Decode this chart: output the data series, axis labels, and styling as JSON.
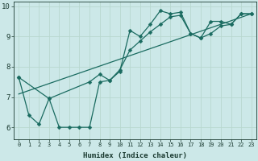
{
  "xlabel": "Humidex (Indice chaleur)",
  "bg_color": "#cce8e8",
  "line_color": "#1a6b60",
  "grid_color": "#b8d8d0",
  "font_color": "#1a3a30",
  "xlim_min": -0.5,
  "xlim_max": 23.5,
  "ylim_min": 5.6,
  "ylim_max": 10.15,
  "xticks": [
    0,
    1,
    2,
    3,
    4,
    5,
    6,
    7,
    8,
    9,
    10,
    11,
    12,
    13,
    14,
    15,
    16,
    17,
    18,
    19,
    20,
    21,
    22,
    23
  ],
  "yticks": [
    6,
    7,
    8,
    9,
    10
  ],
  "line1_x": [
    0,
    1,
    2,
    3,
    4,
    5,
    6,
    7,
    8,
    9,
    10,
    11,
    12,
    13,
    14,
    15,
    16,
    17,
    18,
    19,
    20,
    21,
    22,
    23
  ],
  "line1_y": [
    7.65,
    6.4,
    6.1,
    6.95,
    6.0,
    6.0,
    6.0,
    6.0,
    7.5,
    7.55,
    7.85,
    9.2,
    9.0,
    9.4,
    9.85,
    9.75,
    9.8,
    9.1,
    8.95,
    9.5,
    9.5,
    9.4,
    9.75,
    9.75
  ],
  "line2_x": [
    0,
    3,
    7,
    8,
    9,
    10,
    11,
    12,
    13,
    14,
    15,
    16,
    17,
    18,
    19,
    20,
    21,
    22,
    23
  ],
  "line2_y": [
    7.65,
    6.95,
    7.5,
    7.75,
    7.55,
    7.9,
    8.55,
    8.85,
    9.15,
    9.4,
    9.65,
    9.7,
    9.1,
    8.95,
    9.1,
    9.35,
    9.4,
    9.75,
    9.75
  ],
  "line3_x": [
    0,
    23
  ],
  "line3_y": [
    7.1,
    9.75
  ],
  "marker_size": 2.5,
  "line_width": 0.9,
  "xtick_fontsize": 5.0,
  "ytick_fontsize": 6.5,
  "xlabel_fontsize": 6.5
}
